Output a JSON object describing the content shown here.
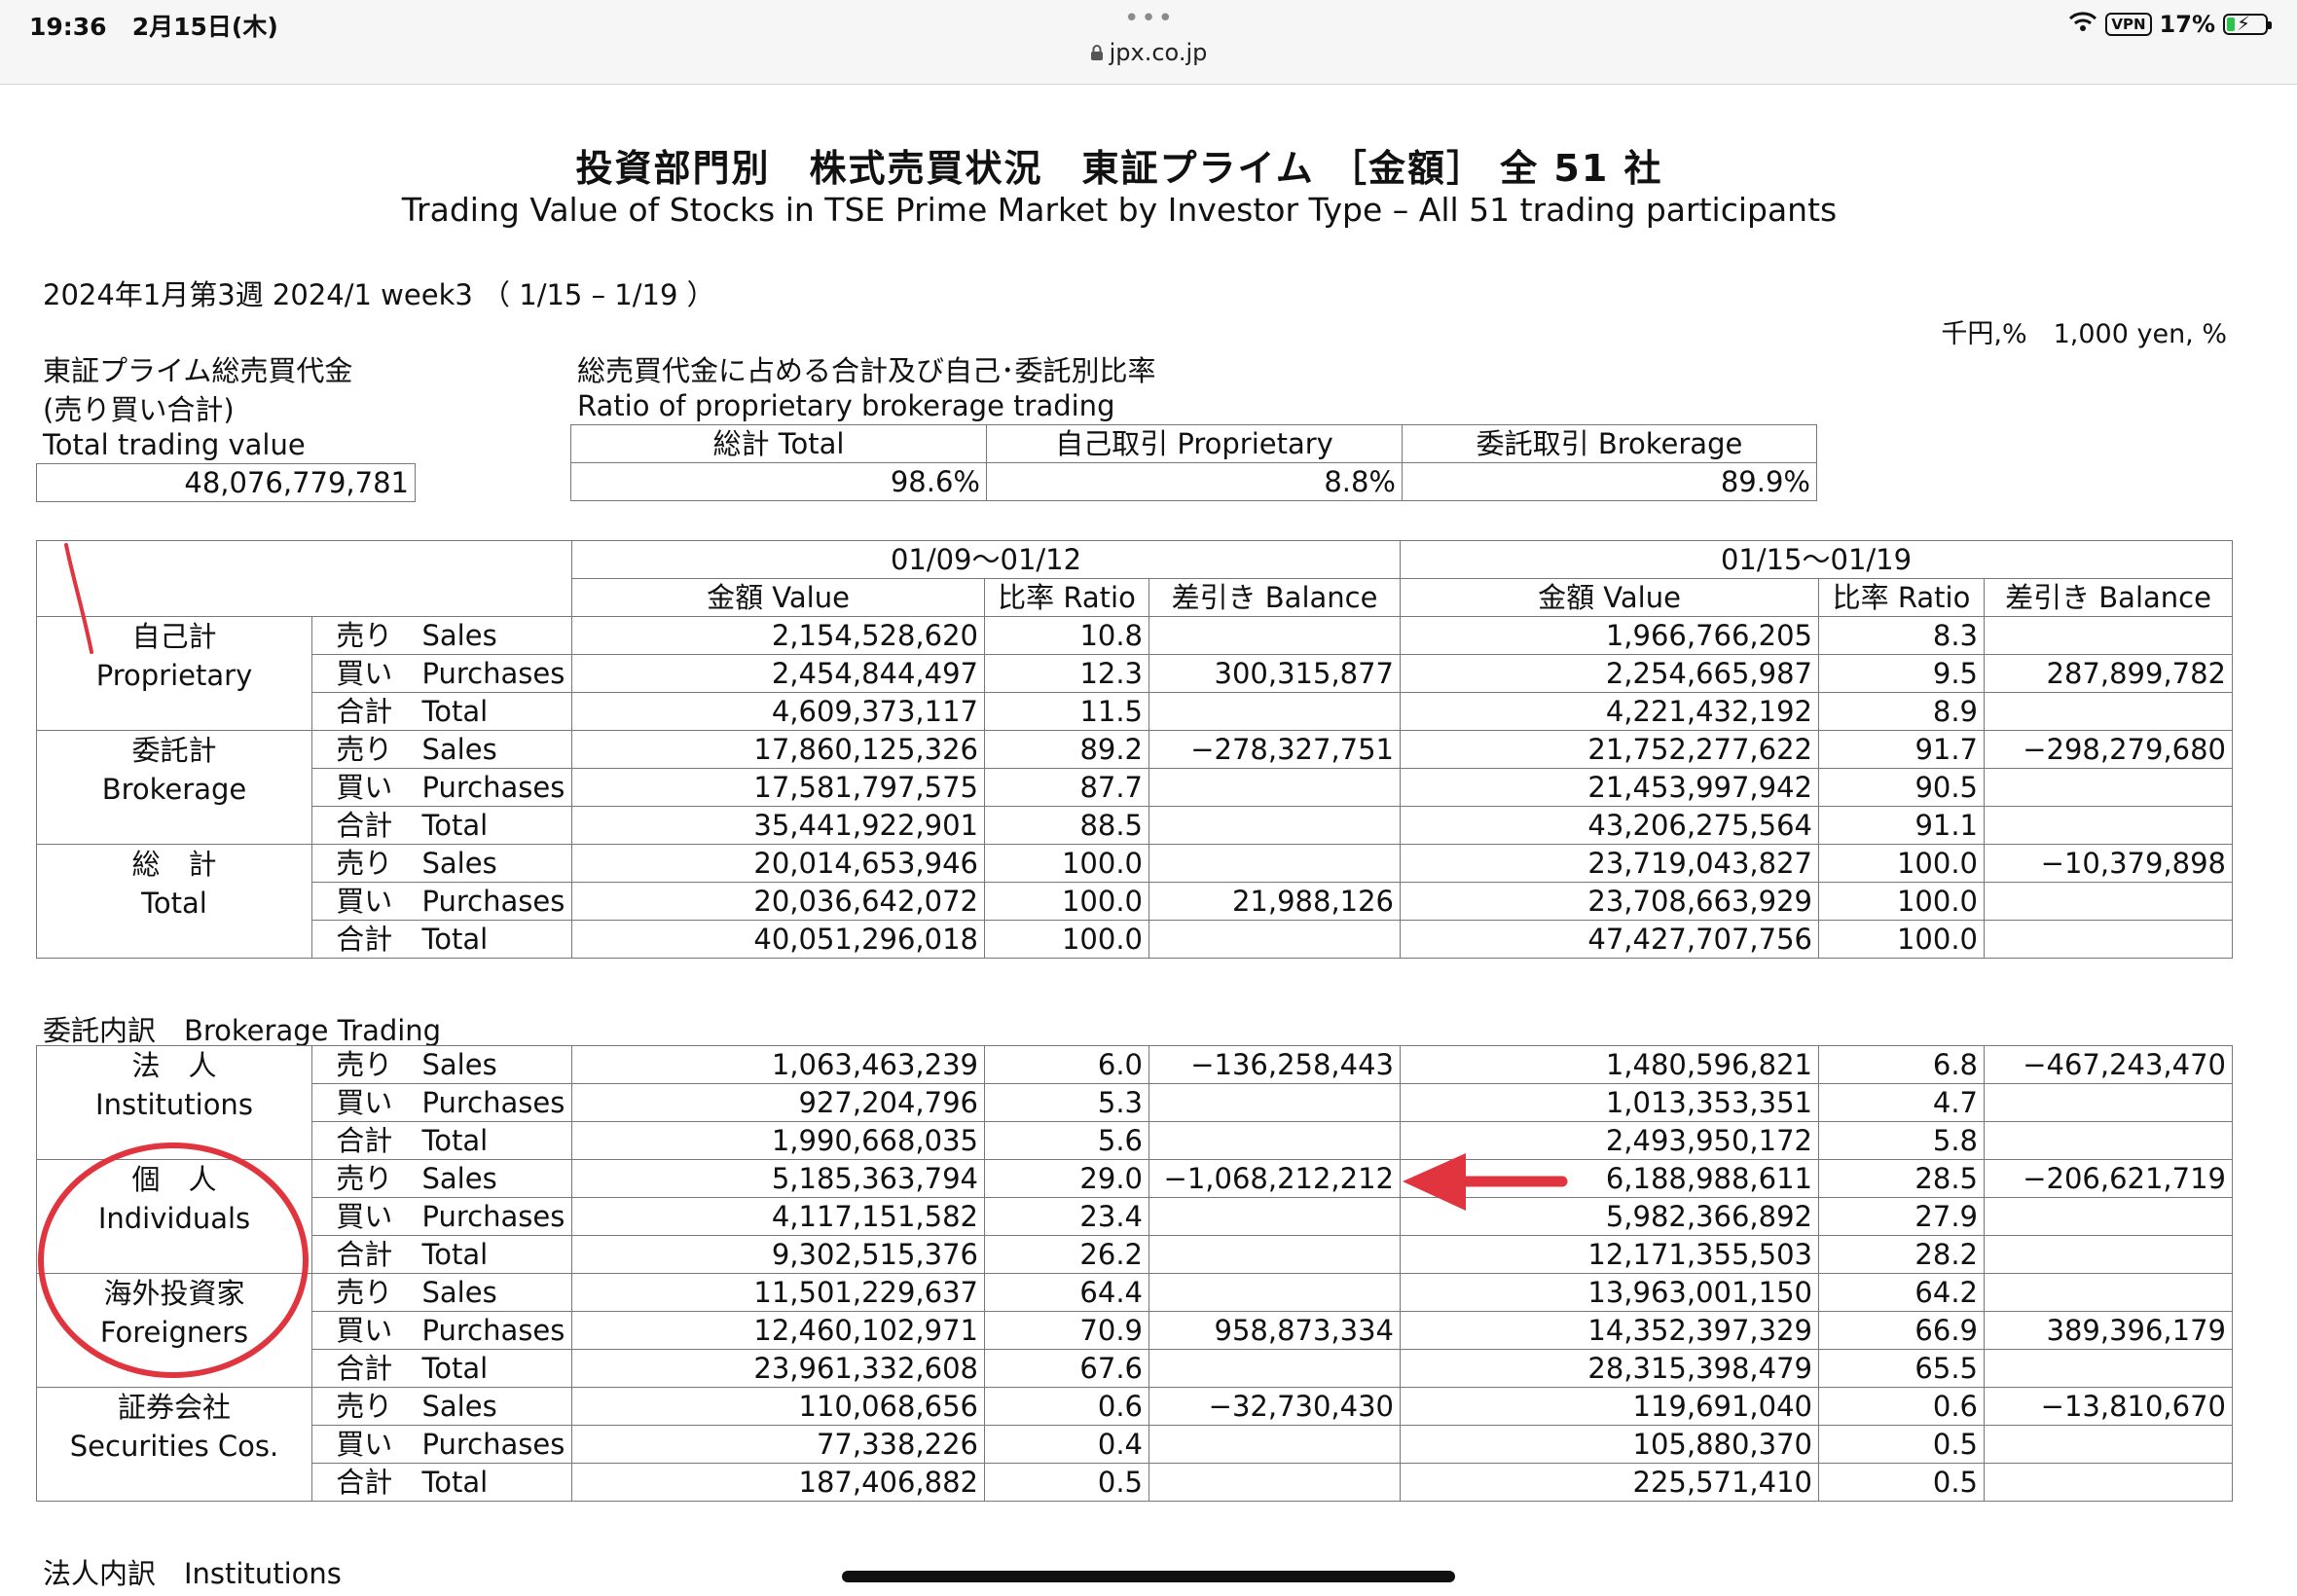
{
  "status": {
    "time": "19:36",
    "date": "2月15日(木)",
    "dots": "•••",
    "url": "jpx.co.jp",
    "vpn": "VPN",
    "battery": "17%"
  },
  "doc": {
    "title_jp": "投資部門別　株式売買状況　東証プライム ［金額］ 全 51 社",
    "title_en": "Trading Value of Stocks in TSE Prime Market by Investor Type – All 51 trading participants",
    "period": "2024年1月第3週 2024/1 week3 （ 1/15 – 1/19 ）",
    "unit": "千円,%　1,000 yen, %",
    "total_label_jp1": "東証プライム総売買代金",
    "total_label_jp2": "(売り買い合計)",
    "total_label_en": "Total trading value",
    "total_value": "48,076,779,781",
    "ratio_label_jp": "総売買代金に占める合計及び自己･委託別比率",
    "ratio_label_en": "Ratio of proprietary brokerage trading",
    "ratio_headers": [
      "総計 Total",
      "自己取引 Proprietary",
      "委託取引 Brokerage"
    ],
    "ratio_values": [
      "98.6%",
      "8.8%",
      "89.9%"
    ]
  },
  "main_table": {
    "period1": "01/09～01/12",
    "period2": "01/15～01/19",
    "col_value": "金額 Value",
    "col_ratio": "比率 Ratio",
    "col_balance": "差引き Balance",
    "groups": [
      {
        "jp": "自己計",
        "en": "Proprietary",
        "rows": [
          {
            "jp": "売り",
            "en": "Sales",
            "v1": "2,154,528,620",
            "r1": "10.8",
            "b1": "",
            "v2": "1,966,766,205",
            "r2": "8.3",
            "b2": ""
          },
          {
            "jp": "買い",
            "en": "Purchases",
            "v1": "2,454,844,497",
            "r1": "12.3",
            "b1": "300,315,877",
            "v2": "2,254,665,987",
            "r2": "9.5",
            "b2": "287,899,782"
          },
          {
            "jp": "合計",
            "en": "Total",
            "v1": "4,609,373,117",
            "r1": "11.5",
            "b1": "",
            "v2": "4,221,432,192",
            "r2": "8.9",
            "b2": ""
          }
        ]
      },
      {
        "jp": "委託計",
        "en": "Brokerage",
        "rows": [
          {
            "jp": "売り",
            "en": "Sales",
            "v1": "17,860,125,326",
            "r1": "89.2",
            "b1": "−278,327,751",
            "v2": "21,752,277,622",
            "r2": "91.7",
            "b2": "−298,279,680"
          },
          {
            "jp": "買い",
            "en": "Purchases",
            "v1": "17,581,797,575",
            "r1": "87.7",
            "b1": "",
            "v2": "21,453,997,942",
            "r2": "90.5",
            "b2": ""
          },
          {
            "jp": "合計",
            "en": "Total",
            "v1": "35,441,922,901",
            "r1": "88.5",
            "b1": "",
            "v2": "43,206,275,564",
            "r2": "91.1",
            "b2": ""
          }
        ]
      },
      {
        "jp": "総　計",
        "en": "Total",
        "rows": [
          {
            "jp": "売り",
            "en": "Sales",
            "v1": "20,014,653,946",
            "r1": "100.0",
            "b1": "",
            "v2": "23,719,043,827",
            "r2": "100.0",
            "b2": "−10,379,898"
          },
          {
            "jp": "買い",
            "en": "Purchases",
            "v1": "20,036,642,072",
            "r1": "100.0",
            "b1": "21,988,126",
            "v2": "23,708,663,929",
            "r2": "100.0",
            "b2": ""
          },
          {
            "jp": "合計",
            "en": "Total",
            "v1": "40,051,296,018",
            "r1": "100.0",
            "b1": "",
            "v2": "47,427,707,756",
            "r2": "100.0",
            "b2": ""
          }
        ]
      }
    ]
  },
  "brokerage": {
    "heading": "委託内訳　Brokerage Trading",
    "groups": [
      {
        "jp": "法　人",
        "en": "Institutions",
        "rows": [
          {
            "jp": "売り",
            "en": "Sales",
            "v1": "1,063,463,239",
            "r1": "6.0",
            "b1": "−136,258,443",
            "v2": "1,480,596,821",
            "r2": "6.8",
            "b2": "−467,243,470"
          },
          {
            "jp": "買い",
            "en": "Purchases",
            "v1": "927,204,796",
            "r1": "5.3",
            "b1": "",
            "v2": "1,013,353,351",
            "r2": "4.7",
            "b2": ""
          },
          {
            "jp": "合計",
            "en": "Total",
            "v1": "1,990,668,035",
            "r1": "5.6",
            "b1": "",
            "v2": "2,493,950,172",
            "r2": "5.8",
            "b2": ""
          }
        ]
      },
      {
        "jp": "個　人",
        "en": "Individuals",
        "rows": [
          {
            "jp": "売り",
            "en": "Sales",
            "v1": "5,185,363,794",
            "r1": "29.0",
            "b1": "−1,068,212,212",
            "v2": "6,188,988,611",
            "r2": "28.5",
            "b2": "−206,621,719"
          },
          {
            "jp": "買い",
            "en": "Purchases",
            "v1": "4,117,151,582",
            "r1": "23.4",
            "b1": "",
            "v2": "5,982,366,892",
            "r2": "27.9",
            "b2": ""
          },
          {
            "jp": "合計",
            "en": "Total",
            "v1": "9,302,515,376",
            "r1": "26.2",
            "b1": "",
            "v2": "12,171,355,503",
            "r2": "28.2",
            "b2": ""
          }
        ]
      },
      {
        "jp": "海外投資家",
        "en": "Foreigners",
        "rows": [
          {
            "jp": "売り",
            "en": "Sales",
            "v1": "11,501,229,637",
            "r1": "64.4",
            "b1": "",
            "v2": "13,963,001,150",
            "r2": "64.2",
            "b2": ""
          },
          {
            "jp": "買い",
            "en": "Purchases",
            "v1": "12,460,102,971",
            "r1": "70.9",
            "b1": "958,873,334",
            "v2": "14,352,397,329",
            "r2": "66.9",
            "b2": "389,396,179"
          },
          {
            "jp": "合計",
            "en": "Total",
            "v1": "23,961,332,608",
            "r1": "67.6",
            "b1": "",
            "v2": "28,315,398,479",
            "r2": "65.5",
            "b2": ""
          }
        ]
      },
      {
        "jp": "証券会社",
        "en": "Securities Cos.",
        "rows": [
          {
            "jp": "売り",
            "en": "Sales",
            "v1": "110,068,656",
            "r1": "0.6",
            "b1": "−32,730,430",
            "v2": "119,691,040",
            "r2": "0.6",
            "b2": "−13,810,670"
          },
          {
            "jp": "買い",
            "en": "Purchases",
            "v1": "77,338,226",
            "r1": "0.4",
            "b1": "",
            "v2": "105,880,370",
            "r2": "0.5",
            "b2": ""
          },
          {
            "jp": "合計",
            "en": "Total",
            "v1": "187,406,882",
            "r1": "0.5",
            "b1": "",
            "v2": "225,571,410",
            "r2": "0.5",
            "b2": ""
          }
        ]
      }
    ]
  },
  "institutions_heading": "法人内訳　Institutions",
  "annotation_color": "#e0343f"
}
